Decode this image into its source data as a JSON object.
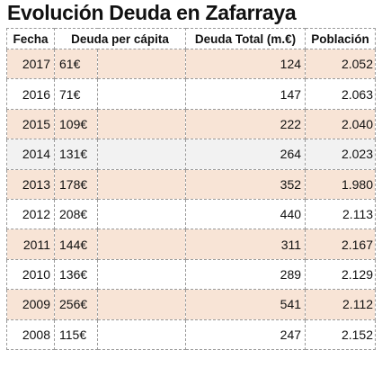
{
  "title": "Evolución Deuda en Zafarraya",
  "headers": {
    "fecha": "Fecha",
    "deuda_per_capita": "Deuda per cápita",
    "deuda_total": "Deuda Total (m.€)",
    "poblacion": "Población"
  },
  "rows": [
    {
      "year": "2017",
      "per_capita": "61€",
      "total": "124",
      "poblacion": "2.052"
    },
    {
      "year": "2016",
      "per_capita": "71€",
      "total": "147",
      "poblacion": "2.063"
    },
    {
      "year": "2015",
      "per_capita": "109€",
      "total": "222",
      "poblacion": "2.040"
    },
    {
      "year": "2014",
      "per_capita": "131€",
      "total": "264",
      "poblacion": "2.023"
    },
    {
      "year": "2013",
      "per_capita": "178€",
      "total": "352",
      "poblacion": "1.980"
    },
    {
      "year": "2012",
      "per_capita": "208€",
      "total": "440",
      "poblacion": "2.113"
    },
    {
      "year": "2011",
      "per_capita": "144€",
      "total": "311",
      "poblacion": "2.167"
    },
    {
      "year": "2010",
      "per_capita": "136€",
      "total": "289",
      "poblacion": "2.129"
    },
    {
      "year": "2009",
      "per_capita": "256€",
      "total": "541",
      "poblacion": "2.112"
    },
    {
      "year": "2008",
      "per_capita": "115€",
      "total": "247",
      "poblacion": "2.152"
    }
  ],
  "colors": {
    "row_band": "#f8e4d6",
    "row_plain": "#ffffff",
    "row_gray": "#f2f2f2",
    "grid_line": "#9a9a9a"
  }
}
